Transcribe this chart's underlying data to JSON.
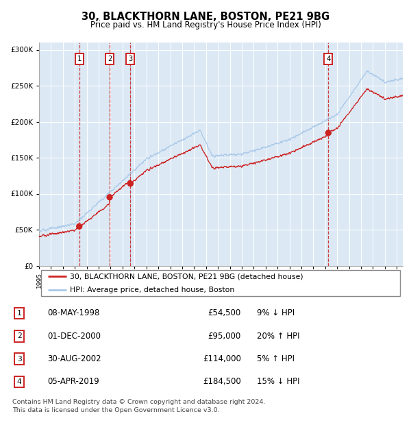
{
  "title": "30, BLACKTHORN LANE, BOSTON, PE21 9BG",
  "subtitle": "Price paid vs. HM Land Registry's House Price Index (HPI)",
  "legend_line1": "30, BLACKTHORN LANE, BOSTON, PE21 9BG (detached house)",
  "legend_line2": "HPI: Average price, detached house, Boston",
  "footer1": "Contains HM Land Registry data © Crown copyright and database right 2024.",
  "footer2": "This data is licensed under the Open Government Licence v3.0.",
  "transactions": [
    {
      "num": 1,
      "date": "08-MAY-1998",
      "price": 54500,
      "pct": "9%",
      "dir": "↓",
      "year_x": 1998.37
    },
    {
      "num": 2,
      "date": "01-DEC-2000",
      "price": 95000,
      "pct": "20%",
      "dir": "↑",
      "year_x": 2000.92
    },
    {
      "num": 3,
      "date": "30-AUG-2002",
      "price": 114000,
      "pct": "5%",
      "dir": "↑",
      "year_x": 2002.66
    },
    {
      "num": 4,
      "date": "05-APR-2019",
      "price": 184500,
      "pct": "15%",
      "dir": "↓",
      "year_x": 2019.26
    }
  ],
  "hpi_color": "#a8c8e8",
  "price_color": "#cc2222",
  "plot_bg": "#dce9f5",
  "grid_color": "#ffffff",
  "vline_red": "#cc3333",
  "vline_gray": "#9999bb",
  "box_color": "#cc2222",
  "ylim": [
    0,
    310000
  ],
  "xmin": 1995.0,
  "xmax": 2025.5,
  "yticks": [
    0,
    50000,
    100000,
    150000,
    200000,
    250000,
    300000
  ]
}
